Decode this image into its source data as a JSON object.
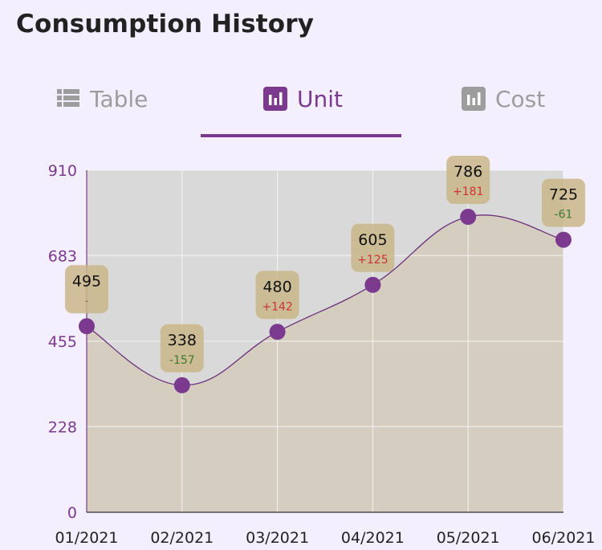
{
  "header": {
    "title": "Consumption History"
  },
  "tabs": [
    {
      "label": "Table",
      "icon": "table-list-icon",
      "active": false
    },
    {
      "label": "Unit",
      "icon": "bar-chart-icon",
      "active": true
    },
    {
      "label": "Cost",
      "icon": "bar-chart-icon",
      "active": false
    }
  ],
  "colors": {
    "accent": "#7c3a8e",
    "inactive": "#9d9d9d",
    "point": "#7c3a8e",
    "label_box": "#c9b688",
    "increase": "#cc3333",
    "decrease": "#3f7a2e",
    "plot_bg": "#d9d9d9",
    "area_fill": "#d5cec0"
  },
  "chart_data": {
    "type": "area",
    "categories": [
      "01/2021",
      "02/2021",
      "03/2021",
      "04/2021",
      "05/2021",
      "06/2021"
    ],
    "values": [
      495,
      338,
      480,
      605,
      786,
      725
    ],
    "changes": [
      "-",
      "-157",
      "+142",
      "+125",
      "+181",
      "-61"
    ],
    "yticks": [
      0,
      228,
      455,
      683,
      910
    ],
    "ylim": [
      0,
      910
    ],
    "grid": true
  }
}
